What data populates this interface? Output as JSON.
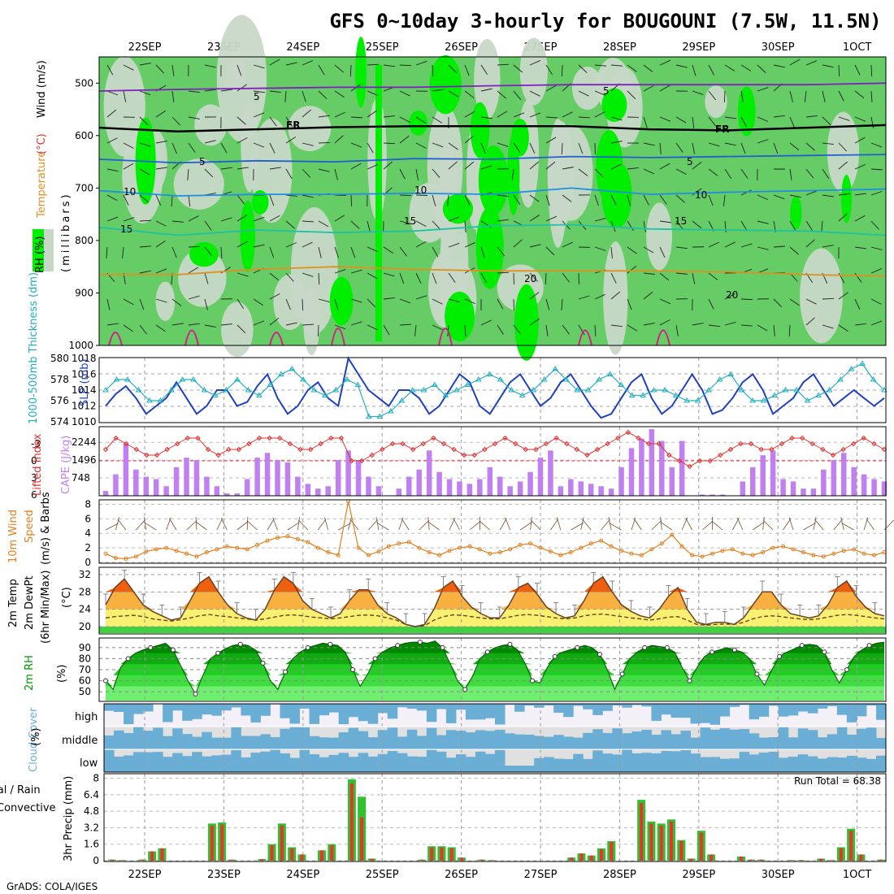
{
  "title": "GFS 0~10day 3-hourly for BOUGOUNI (7.5W, 11.5N)",
  "credit": "GrADS: COLA/IGES",
  "dates": [
    "22SEP",
    "23SEP",
    "24SEP",
    "25SEP",
    "26SEP",
    "27SEP",
    "28SEP",
    "29SEP",
    "30SEP",
    "1OCT"
  ],
  "colors": {
    "rh_light": "#c8d8c8",
    "rh_mid": "#66cc66",
    "rh_bright": "#00ee00",
    "slp": "#2040c0",
    "thickness": "#20b0c0",
    "lifted": "#e03030",
    "cape": "#c080f0",
    "wind": "#e08020",
    "temp_hot": "#ee6010",
    "temp_warm": "#f8b040",
    "temp_cool": "#f8f070",
    "rh_green": "#009900",
    "cloud": "#6aaed6",
    "rain": "#30c030",
    "conv": "#ee3030"
  },
  "labels": {
    "rh_pct": "RH (%)",
    "temperature": "Temperature",
    "temp_unit": "(°C)",
    "wind": "Wind (m/s)",
    "millibars": "(millibars)",
    "thick": "1000-500mb Thickness (dm)",
    "slp": "SLP (mb)",
    "lifted": "Lifted Index",
    "cape": "CAPE (J/kg)",
    "wind10": "10m Wind",
    "speed": "Speed",
    "barbs": "(m/s) & Barbs",
    "temp2m": "2m Temp",
    "dewpt": "2m DewPt",
    "minmax": "(6hr Min/Max)",
    "celsius": "(°C)",
    "rh2m": "2m RH",
    "pct": "(%)",
    "cloud": "Cloud Cover",
    "cloud_pct": "(%)",
    "cloud_high": "high",
    "cloud_middle": "middle",
    "cloud_low": "low",
    "total_rain": "Total / Rain",
    "convective": "Convective",
    "precip": "3hr Precip (mm)",
    "run_total": "Run Total = 68.38"
  },
  "contour_labels": [
    "5",
    "FR",
    "FR",
    "5",
    "5",
    "5",
    "10",
    "10",
    "10",
    "15",
    "15",
    "15",
    "20",
    "20"
  ],
  "chart_data": [
    {
      "panel": "upper_air",
      "type": "heatmap",
      "ylabel": "(millibars)",
      "y_ticks": [
        500,
        600,
        700,
        800,
        900,
        1000
      ],
      "ylim": [
        1000,
        450
      ],
      "isotherms": [
        {
          "name": "-5",
          "y": [
            515,
            512,
            510,
            508,
            508,
            505,
            503,
            503,
            503,
            503,
            500
          ]
        },
        {
          "name": "FR",
          "y": [
            585,
            592,
            588,
            584,
            582,
            582,
            582,
            588,
            590,
            585,
            580
          ]
        },
        {
          "name": "5",
          "y": [
            645,
            652,
            648,
            650,
            644,
            645,
            640,
            642,
            640,
            638,
            636
          ]
        },
        {
          "name": "10",
          "y": [
            705,
            715,
            712,
            712,
            710,
            712,
            700,
            712,
            708,
            705,
            702
          ]
        },
        {
          "name": "15",
          "y": [
            775,
            790,
            780,
            785,
            782,
            772,
            770,
            778,
            780,
            782,
            790
          ]
        },
        {
          "name": "20",
          "y": [
            865,
            865,
            855,
            850,
            855,
            858,
            858,
            858,
            860,
            865,
            868
          ]
        }
      ]
    },
    {
      "panel": "slp_thickness",
      "type": "line",
      "series": [
        {
          "name": "SLP (mb)",
          "yticks": [
            1010,
            1012,
            1014,
            1016,
            1018
          ],
          "values": [
            1012,
            1013.5,
            1014.5,
            1013,
            1011,
            1012,
            1013,
            1015,
            1013,
            1011,
            1012,
            1014,
            1014,
            1012,
            1012.5,
            1014.5,
            1016,
            1013,
            1011,
            1012,
            1014,
            1015,
            1013,
            1012,
            1018,
            1016,
            1014,
            1013,
            1012,
            1014,
            1014,
            1013,
            1011,
            1012,
            1014,
            1016,
            1015,
            1012,
            1011,
            1013,
            1015,
            1016,
            1014,
            1012,
            1013,
            1015,
            1016,
            1014,
            1012,
            1010.5,
            1011,
            1013,
            1015,
            1016,
            1013,
            1011,
            1012,
            1014,
            1016,
            1014,
            1011,
            1011.5,
            1013,
            1015,
            1016,
            1014,
            1011,
            1012,
            1013,
            1015,
            1016,
            1014,
            1012,
            1013,
            1014,
            1013,
            1012,
            1013
          ]
        },
        {
          "name": "1000-500mb Thickness (dm)",
          "yticks": [
            574,
            576,
            578,
            580
          ],
          "values": [
            577,
            578,
            578,
            577,
            576,
            576,
            577,
            578,
            578,
            577,
            576.5,
            577,
            578,
            577,
            576.5,
            577.5,
            578.5,
            579,
            578,
            577,
            576.5,
            577,
            578,
            577.5,
            574.5,
            574.5,
            575,
            576,
            577,
            577,
            577.5,
            576.5,
            577,
            577.5,
            578,
            578.5,
            578,
            577,
            576.5,
            577,
            578,
            579,
            578,
            577,
            577,
            578,
            578.5,
            577.5,
            576.5,
            576.5,
            577,
            577,
            576.5,
            576,
            576,
            577,
            578,
            578.5,
            577,
            576,
            576,
            576.5,
            577,
            577,
            576,
            576.5,
            577,
            578,
            579,
            579.5,
            578,
            577
          ]
        }
      ]
    },
    {
      "panel": "stability",
      "type": "bar",
      "lifted_index_ticks": [
        -3,
        0,
        3,
        6
      ],
      "cape_ticks": [
        748,
        1496,
        2244
      ],
      "series": [
        {
          "name": "CAPE (J/kg)",
          "values": [
            200,
            900,
            2200,
            1100,
            800,
            700,
            400,
            1200,
            1600,
            1500,
            800,
            400,
            100,
            100,
            700,
            1600,
            1800,
            1500,
            1400,
            800,
            500,
            300,
            400,
            1500,
            1900,
            1500,
            800,
            400,
            0,
            300,
            800,
            1100,
            1900,
            1000,
            700,
            600,
            500,
            700,
            1200,
            800,
            400,
            600,
            1000,
            1600,
            1900,
            400,
            700,
            600,
            500,
            400,
            300,
            1200,
            2000,
            2400,
            2800,
            2300,
            1200,
            2300,
            0,
            50,
            50,
            50,
            0,
            600,
            1200,
            1700,
            1900,
            700,
            600,
            300,
            300,
            1100,
            1500,
            1800,
            1200,
            900,
            700,
            600
          ]
        },
        {
          "name": "Lifted Index",
          "values": [
            -2,
            -4,
            -3,
            -2,
            -1,
            -1,
            -2,
            -3,
            -4,
            -4,
            -2,
            -1,
            -2,
            -2,
            -3,
            -4,
            -4,
            -4,
            -3,
            -2,
            -2,
            -3,
            -4,
            -4,
            0,
            0,
            -1,
            -2,
            -3,
            -3,
            -2,
            -3,
            -4,
            -3,
            -2,
            -1,
            -1,
            -2,
            -3,
            -4,
            -3,
            -2,
            -2,
            -3,
            -4,
            -3,
            -2,
            -1,
            -2,
            -3,
            -4,
            -5,
            -4,
            -3,
            -3,
            -1,
            0,
            1,
            0,
            0,
            -1,
            -2,
            -3,
            -3,
            -2,
            -2,
            -3,
            -4,
            -4,
            -3,
            -2,
            -1,
            -2,
            -3,
            -4,
            -3,
            -2
          ]
        }
      ]
    },
    {
      "panel": "wind10m",
      "type": "line",
      "yticks": [
        0,
        2,
        4,
        6,
        8
      ],
      "values": [
        1.2,
        0.6,
        0.5,
        0.8,
        1.5,
        1.8,
        2.0,
        1.6,
        1.2,
        0.8,
        1.4,
        1.8,
        2.2,
        2.0,
        1.8,
        2.4,
        3.0,
        3.4,
        3.6,
        3.2,
        2.8,
        2.0,
        1.4,
        1.0,
        8.4,
        2.0,
        1.0,
        1.5,
        2.2,
        2.6,
        2.8,
        2.0,
        1.4,
        1.0,
        1.6,
        2.0,
        2.2,
        1.8,
        1.2,
        1.4,
        1.8,
        2.4,
        2.6,
        2.0,
        1.5,
        1.0,
        1.4,
        2.0,
        2.6,
        3.0,
        2.2,
        1.6,
        1.2,
        1.0,
        1.8,
        2.6,
        3.8,
        2.2,
        1.0,
        0.8,
        1.2,
        1.6,
        1.8,
        1.2,
        1.0,
        1.4,
        2.0,
        2.2,
        1.8,
        1.4,
        1.0,
        0.8,
        1.2,
        1.6,
        1.8,
        1.2,
        1.0,
        1.4
      ]
    },
    {
      "panel": "temp2m",
      "type": "area",
      "yticks": [
        20,
        24,
        28,
        32
      ],
      "series": [
        {
          "name": "2m Temp",
          "values": [
            25,
            29,
            31,
            28,
            25,
            23.5,
            22.5,
            21.5,
            22,
            26,
            30,
            31.5,
            28,
            25,
            23,
            22,
            21.5,
            24,
            28.5,
            31.5,
            30,
            26,
            24,
            23,
            22,
            23,
            26,
            28.5,
            28.5,
            25,
            23,
            22,
            20.5,
            20,
            20.5,
            24,
            29,
            30.5,
            27,
            24.5,
            23,
            22,
            22,
            25,
            29,
            30,
            27.5,
            24.5,
            23,
            22,
            22.5,
            26,
            30,
            31.5,
            28,
            25,
            23.5,
            22.5,
            22,
            24,
            27,
            29,
            24,
            21,
            20.5,
            21,
            21,
            20.5,
            22,
            25,
            28,
            28,
            25,
            23,
            22.5,
            22,
            22.5,
            25,
            29,
            30.5,
            27,
            24.5,
            23,
            22.5
          ]
        },
        {
          "name": "2m DewPt",
          "values": [
            22,
            22.3,
            22.5,
            22.6,
            22.3,
            21.8,
            21.5,
            21.3,
            21.6,
            22,
            22.5,
            22.8,
            22.5,
            22.3,
            22,
            21.8,
            21.5,
            21.8,
            22.2,
            22.6,
            22.7,
            22.5,
            22.2,
            22,
            21.8,
            22,
            22.3,
            22.6,
            22.7,
            22.5,
            22,
            21.5,
            20.5,
            20,
            20.2,
            21.5,
            22.3,
            22.7,
            22.6,
            22.3,
            22,
            21.8,
            21.8,
            22.2,
            22.6,
            22.8,
            22.6,
            22.3,
            22,
            21.8,
            22,
            22.5,
            22.8,
            22.9,
            22.6,
            22.3,
            22,
            21.8,
            21.5,
            21.8,
            22.2,
            22.3,
            21.5,
            20.5,
            20.3,
            20.5,
            20.6,
            20.5,
            21,
            21.8,
            22.3,
            22.5,
            22.3,
            22,
            21.8,
            21.6,
            21.8,
            22.2,
            22.6,
            22.8,
            22.6,
            22.3,
            22,
            21.8
          ]
        }
      ]
    },
    {
      "panel": "rh2m",
      "type": "area",
      "yticks": [
        50,
        60,
        70,
        80,
        90
      ],
      "values": [
        60,
        52,
        72,
        80,
        85,
        88,
        90,
        92,
        94,
        88,
        74,
        60,
        48,
        65,
        80,
        85,
        89,
        92,
        93,
        92,
        88,
        76,
        60,
        52,
        68,
        80,
        86,
        90,
        92,
        94,
        93,
        92,
        86,
        70,
        55,
        66,
        80,
        86,
        90,
        92,
        94,
        95,
        95,
        94,
        96,
        90,
        76,
        60,
        52,
        64,
        80,
        86,
        90,
        92,
        93,
        88,
        76,
        60,
        58,
        72,
        82,
        86,
        88,
        90,
        92,
        90,
        84,
        70,
        52,
        66,
        80,
        86,
        90,
        92,
        91,
        90,
        86,
        72,
        60,
        72,
        82,
        86,
        88,
        90,
        88,
        86,
        80,
        66,
        56,
        70,
        82,
        86,
        89,
        92,
        93,
        92,
        86,
        70,
        58,
        70,
        82,
        88,
        92,
        94,
        95
      ]
    },
    {
      "panel": "cloud_cover",
      "type": "heatmap",
      "rows": [
        "high",
        "middle",
        "low"
      ]
    },
    {
      "panel": "precip",
      "type": "bar",
      "yticks": [
        0,
        1.6,
        3.2,
        4.8,
        6.4,
        8
      ],
      "run_total": 68.38,
      "series": [
        {
          "name": "Total / Rain",
          "values": [
            0.1,
            0.05,
            0,
            0.1,
            0.9,
            1.2,
            0,
            0,
            0,
            0,
            3.6,
            3.7,
            0.1,
            0,
            0,
            0.15,
            1.6,
            3.6,
            1.3,
            0.6,
            0,
            1.0,
            1.6,
            0,
            7.9,
            6.2,
            0.2,
            0,
            0,
            0,
            0,
            0.1,
            1.4,
            1.4,
            1.3,
            0.3,
            0,
            0.1,
            0.05,
            0,
            0,
            0,
            0,
            0,
            0,
            0,
            0.3,
            0.7,
            0.5,
            1.2,
            1.9,
            0,
            0,
            5.9,
            3.8,
            3.6,
            4.0,
            2.0,
            0.2,
            2.9,
            0.6,
            0,
            0,
            0.4,
            0.1,
            0.1,
            0,
            0,
            0.05,
            0.05,
            0,
            0.2,
            0.05,
            1.3,
            3.1,
            0.6,
            0,
            0.1
          ]
        },
        {
          "name": "Convective",
          "values": [
            0.1,
            0.05,
            0,
            0.1,
            0.9,
            1.2,
            0,
            0,
            0,
            0,
            3.4,
            3.5,
            0.1,
            0,
            0,
            0.15,
            1.5,
            3.4,
            1.2,
            0.6,
            0,
            1.0,
            1.5,
            0,
            7.5,
            4.2,
            0.2,
            0,
            0,
            0,
            0,
            0.1,
            1.3,
            1.3,
            1.2,
            0.3,
            0,
            0.1,
            0.05,
            0,
            0,
            0,
            0,
            0,
            0,
            0,
            0.3,
            0.7,
            0.5,
            1.1,
            1.8,
            0,
            0,
            5.6,
            3.6,
            3.4,
            3.8,
            1.9,
            0.2,
            2.7,
            0.6,
            0,
            0,
            0.4,
            0.1,
            0.1,
            0,
            0,
            0.05,
            0.05,
            0,
            0.2,
            0.05,
            1.2,
            2.9,
            0.6,
            0,
            0.1
          ]
        }
      ]
    }
  ]
}
